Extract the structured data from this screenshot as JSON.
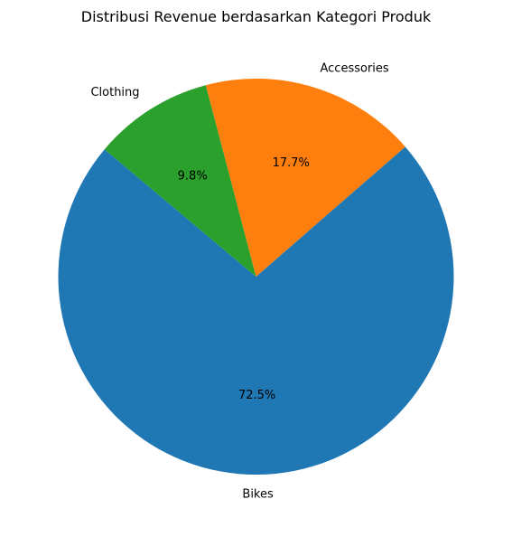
{
  "chart_data": {
    "type": "pie",
    "title": "Distribusi Revenue berdasarkan Kategori Produk",
    "categories": [
      "Bikes",
      "Accessories",
      "Clothing"
    ],
    "values": [
      72.5,
      17.7,
      9.8
    ],
    "value_labels": [
      "72.5%",
      "17.7%",
      "9.8%"
    ],
    "colors": [
      "#1f77b4",
      "#ff7f0e",
      "#2ca02c"
    ],
    "start_angle_deg": 140,
    "direction": "counterclockwise",
    "legend": "none"
  }
}
